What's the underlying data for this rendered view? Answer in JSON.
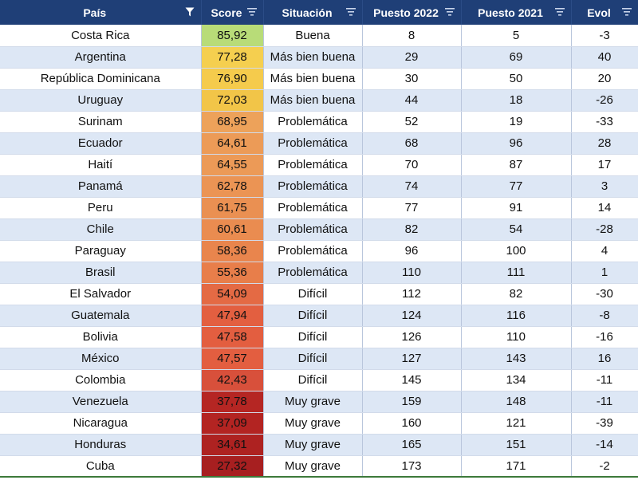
{
  "headers": [
    "País",
    "Score",
    "Situación",
    "Puesto 2022",
    "Puesto 2021",
    "Evol"
  ],
  "filter_icons": [
    "filter-active-icon",
    "filter-dropdown-icon",
    "filter-dropdown-icon",
    "filter-dropdown-icon",
    "filter-dropdown-icon",
    "filter-dropdown-icon"
  ],
  "rows": [
    {
      "pais": "Costa Rica",
      "score": "85,92",
      "situacion": "Buena",
      "p2022": "8",
      "p2021": "5",
      "evol": "-3",
      "color": "#b8dc78"
    },
    {
      "pais": "Argentina",
      "score": "77,28",
      "situacion": "Más bien buena",
      "p2022": "29",
      "p2021": "69",
      "evol": "40",
      "color": "#f5cf4f"
    },
    {
      "pais": "República Dominicana",
      "score": "76,90",
      "situacion": "Más bien buena",
      "p2022": "30",
      "p2021": "50",
      "evol": "20",
      "color": "#f5cb4c"
    },
    {
      "pais": "Uruguay",
      "score": "72,03",
      "situacion": "Más bien buena",
      "p2022": "44",
      "p2021": "18",
      "evol": "-26",
      "color": "#f2c548"
    },
    {
      "pais": "Surinam",
      "score": "68,95",
      "situacion": "Problemática",
      "p2022": "52",
      "p2021": "19",
      "evol": "-33",
      "color": "#eda25a"
    },
    {
      "pais": "Ecuador",
      "score": "64,61",
      "situacion": "Problemática",
      "p2022": "68",
      "p2021": "96",
      "evol": "28",
      "color": "#ec9b57"
    },
    {
      "pais": "Haití",
      "score": "64,55",
      "situacion": "Problemática",
      "p2022": "70",
      "p2021": "87",
      "evol": "17",
      "color": "#ec9a57"
    },
    {
      "pais": "Panamá",
      "score": "62,78",
      "situacion": "Problemática",
      "p2022": "74",
      "p2021": "77",
      "evol": "3",
      "color": "#eb9454"
    },
    {
      "pais": "Peru",
      "score": "61,75",
      "situacion": "Problemática",
      "p2022": "77",
      "p2021": "91",
      "evol": "14",
      "color": "#ea9052"
    },
    {
      "pais": "Chile",
      "score": "60,61",
      "situacion": "Problemática",
      "p2022": "82",
      "p2021": "54",
      "evol": "-28",
      "color": "#ea8c50"
    },
    {
      "pais": "Paraguay",
      "score": "58,36",
      "situacion": "Problemática",
      "p2022": "96",
      "p2021": "100",
      "evol": "4",
      "color": "#e9854d"
    },
    {
      "pais": "Brasil",
      "score": "55,36",
      "situacion": "Problemática",
      "p2022": "110",
      "p2021": "111",
      "evol": "1",
      "color": "#e87e4a"
    },
    {
      "pais": "El Salvador",
      "score": "54,09",
      "situacion": "Difícil",
      "p2022": "112",
      "p2021": "82",
      "evol": "-30",
      "color": "#e46a44"
    },
    {
      "pais": "Guatemala",
      "score": "47,94",
      "situacion": "Difícil",
      "p2022": "124",
      "p2021": "116",
      "evol": "-8",
      "color": "#e35f40"
    },
    {
      "pais": "Bolivia",
      "score": "47,58",
      "situacion": "Difícil",
      "p2022": "126",
      "p2021": "110",
      "evol": "-16",
      "color": "#e35e40"
    },
    {
      "pais": "México",
      "score": "47,57",
      "situacion": "Difícil",
      "p2022": "127",
      "p2021": "143",
      "evol": "16",
      "color": "#e35e40"
    },
    {
      "pais": "Colombia",
      "score": "42,43",
      "situacion": "Difícil",
      "p2022": "145",
      "p2021": "134",
      "evol": "-11",
      "color": "#d8503b"
    },
    {
      "pais": "Venezuela",
      "score": "37,78",
      "situacion": "Muy grave",
      "p2022": "159",
      "p2021": "148",
      "evol": "-11",
      "color": "#b52623"
    },
    {
      "pais": "Nicaragua",
      "score": "37,09",
      "situacion": "Muy grave",
      "p2022": "160",
      "p2021": "121",
      "evol": "-39",
      "color": "#b32422"
    },
    {
      "pais": "Honduras",
      "score": "34,61",
      "situacion": "Muy grave",
      "p2022": "165",
      "p2021": "151",
      "evol": "-14",
      "color": "#ae2221"
    },
    {
      "pais": "Cuba",
      "score": "27,32",
      "situacion": "Muy grave",
      "p2022": "173",
      "p2021": "171",
      "evol": "-2",
      "color": "#a71f20"
    }
  ]
}
